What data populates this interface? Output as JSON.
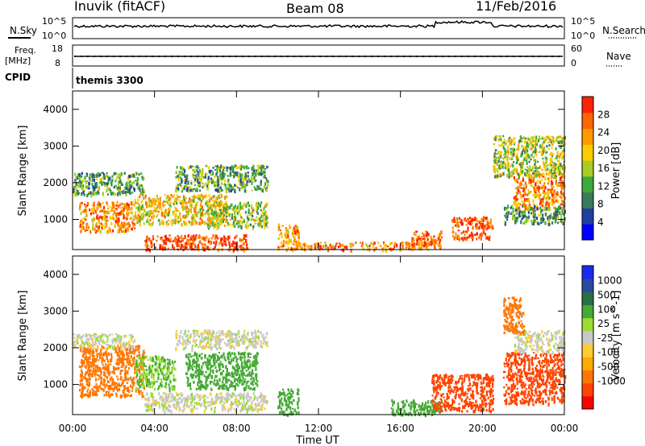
{
  "header": {
    "station": "Inuvik (fitACF)",
    "beam": "Beam 08",
    "date": "11/Feb/2016"
  },
  "top_panels": {
    "nsky_label": "N.Sky",
    "nsky_ticks": [
      "10^5",
      "10^0"
    ],
    "nsearch_label": "N.Search",
    "nsearch_ticks": [
      "10^5",
      "10^0"
    ],
    "freq_label": "Freq.",
    "freq_unit": "[MHz]",
    "freq_ticks": [
      "18",
      "8"
    ],
    "nave_label": "Nave",
    "nave_ticks": [
      "60",
      "0"
    ],
    "cpid_label": "CPID",
    "cpid_value": "themis 3300"
  },
  "colors": {
    "power_scale": [
      "#0000ff",
      "#1f3f9f",
      "#3a7a5a",
      "#3aaa3a",
      "#aacc22",
      "#ffcc00",
      "#ff9900",
      "#ff6600",
      "#ff2200"
    ],
    "velocity_scale": [
      "#ff0000",
      "#ff4400",
      "#ff7700",
      "#ffaa00",
      "#ffcc33",
      "#c8c8c8",
      "#99dd33",
      "#44aa33",
      "#2a6e4a",
      "#2a4aa0",
      "#1a2aee"
    ]
  },
  "chart_data": [
    {
      "type": "heatmap",
      "name": "power",
      "ylabel": "Slant Range [km]",
      "yticks": [
        "4000",
        "3000",
        "2000",
        "1000"
      ],
      "ytick_values": [
        4000,
        3000,
        2000,
        1000
      ],
      "ylim": [
        180,
        4500
      ],
      "xlim": [
        "00:00",
        "24:00"
      ],
      "colorbar_label": "Power [dB]",
      "colorbar_ticks": [
        "28",
        "24",
        "20",
        "16",
        "12",
        "8",
        "4"
      ],
      "colorbar_values": [
        28,
        24,
        20,
        16,
        12,
        8,
        4
      ],
      "colorbar_range": [
        0,
        32
      ],
      "regions": [
        {
          "t0": 0.0,
          "t1": 3.5,
          "r0": 1700,
          "r1": 2300,
          "level": 12
        },
        {
          "t0": 0.3,
          "t1": 3.0,
          "r0": 700,
          "r1": 1500,
          "level": 24
        },
        {
          "t0": 3.0,
          "t1": 7.5,
          "r0": 900,
          "r1": 1700,
          "level": 20
        },
        {
          "t0": 5.0,
          "t1": 9.5,
          "r0": 1800,
          "r1": 2500,
          "level": 12
        },
        {
          "t0": 6.5,
          "t1": 9.5,
          "r0": 800,
          "r1": 1500,
          "level": 16
        },
        {
          "t0": 3.5,
          "t1": 8.5,
          "r0": 200,
          "r1": 600,
          "level": 28
        },
        {
          "t0": 10.0,
          "t1": 11.0,
          "r0": 200,
          "r1": 900,
          "level": 24
        },
        {
          "t0": 11.0,
          "t1": 18.0,
          "r0": 200,
          "r1": 400,
          "level": 24
        },
        {
          "t0": 16.5,
          "t1": 18.0,
          "r0": 300,
          "r1": 700,
          "level": 28
        },
        {
          "t0": 18.5,
          "t1": 20.5,
          "r0": 500,
          "r1": 1100,
          "level": 28
        },
        {
          "t0": 21.5,
          "t1": 24.0,
          "r0": 1300,
          "r1": 2300,
          "level": 24
        },
        {
          "t0": 21.0,
          "t1": 24.0,
          "r0": 900,
          "r1": 1400,
          "level": 12
        },
        {
          "t0": 20.5,
          "t1": 24.0,
          "r0": 2200,
          "r1": 3300,
          "level": 16
        }
      ]
    },
    {
      "type": "heatmap",
      "name": "velocity",
      "ylabel": "Slant Range [km]",
      "yticks": [
        "4000",
        "3000",
        "2000",
        "1000"
      ],
      "ytick_values": [
        4000,
        3000,
        2000,
        1000
      ],
      "ylim": [
        180,
        4500
      ],
      "xlim": [
        "00:00",
        "24:00"
      ],
      "xticks": [
        "00:00",
        "04:00",
        "08:00",
        "12:00",
        "16:00",
        "20:00",
        "00:00"
      ],
      "xtick_hours": [
        0,
        4,
        8,
        12,
        16,
        20,
        24
      ],
      "xlabel": "Time UT",
      "colorbar_label": "Velocity [m s^-1]",
      "colorbar_ticks": [
        "1000",
        "500",
        "100",
        "25",
        "-25",
        "-100",
        "-500",
        "-1000"
      ],
      "colorbar_values": [
        1000,
        500,
        100,
        25,
        -25,
        -100,
        -500,
        -1000
      ],
      "regions": [
        {
          "t0": 0.3,
          "t1": 3.5,
          "r0": 700,
          "r1": 2100,
          "level": -150
        },
        {
          "t0": 0.0,
          "t1": 3.0,
          "r0": 2000,
          "r1": 2400,
          "level": 0
        },
        {
          "t0": 3.0,
          "t1": 5.0,
          "r0": 900,
          "r1": 1800,
          "level": 150
        },
        {
          "t0": 5.5,
          "t1": 9.0,
          "r0": 900,
          "r1": 1900,
          "level": 300
        },
        {
          "t0": 5.0,
          "t1": 9.5,
          "r0": 2000,
          "r1": 2500,
          "level": 0
        },
        {
          "t0": 3.5,
          "t1": 9.5,
          "r0": 300,
          "r1": 800,
          "level": 0
        },
        {
          "t0": 10.0,
          "t1": 11.0,
          "r0": 200,
          "r1": 900,
          "level": 300
        },
        {
          "t0": 15.5,
          "t1": 18.0,
          "r0": 200,
          "r1": 600,
          "level": 300
        },
        {
          "t0": 17.5,
          "t1": 20.5,
          "r0": 300,
          "r1": 1300,
          "level": -600
        },
        {
          "t0": 21.0,
          "t1": 24.0,
          "r0": 500,
          "r1": 1900,
          "level": -600
        },
        {
          "t0": 21.5,
          "t1": 24.0,
          "r0": 1900,
          "r1": 2500,
          "level": 0
        },
        {
          "t0": 21.0,
          "t1": 22.0,
          "r0": 2400,
          "r1": 3400,
          "level": -200
        }
      ]
    }
  ]
}
